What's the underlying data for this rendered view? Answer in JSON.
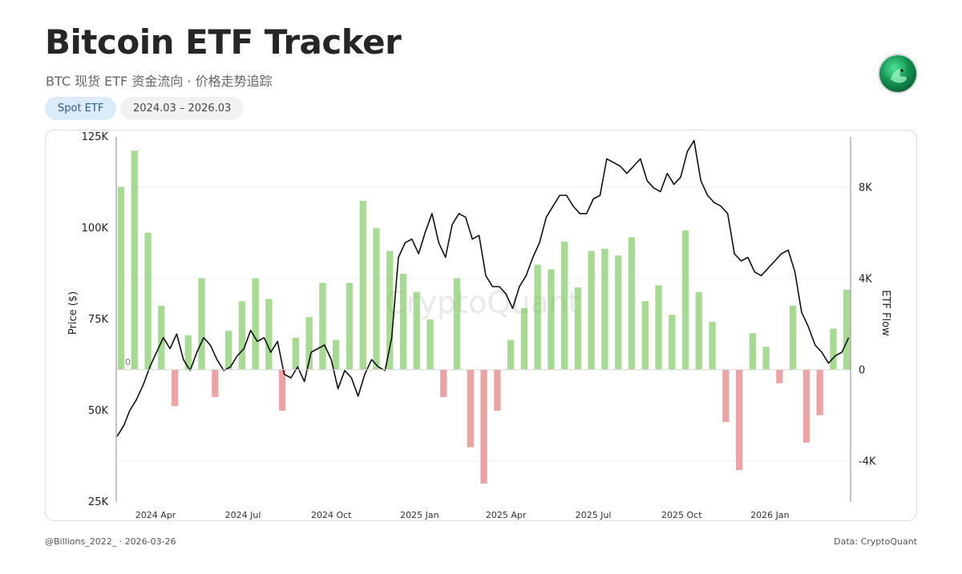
{
  "header": {
    "title": "Bitcoin ETF Tracker",
    "subtitle": "BTC 现货 ETF 资金流向 · 价格走势追踪"
  },
  "badges": {
    "spot_etf": "Spot ETF",
    "range": "2024.03 – 2026.03"
  },
  "watermark": "CryptoQuant",
  "footer": {
    "left": "@Billions_2022_ · 2026-03-26",
    "right": "Data: CryptoQuant"
  },
  "colors": {
    "inflow": "#6cc24a",
    "outflow": "#e06666",
    "price_line": "#111111",
    "pill_blue": "#dcebfa"
  },
  "chart_data": {
    "type": "bar+line",
    "ylabel_left": "Price ($)",
    "ylabel_right": "ETF Flow",
    "left_ylim": [
      25000,
      125000
    ],
    "left_ticks": [
      25000,
      50000,
      75000,
      100000,
      125000
    ],
    "left_tick_labels": [
      "25K",
      "50K",
      "75K",
      "100K",
      "125K"
    ],
    "right_ylim": [
      -5800,
      10200
    ],
    "right_ticks": [
      -4000,
      0,
      4000,
      8000
    ],
    "right_tick_labels": [
      "-4K",
      "0",
      "4K",
      "8K"
    ],
    "x_range": [
      "2024-02-20",
      "2026-03-26"
    ],
    "x_ticks": [
      "2024-04-01",
      "2024-07-01",
      "2024-10-01",
      "2025-01-01",
      "2025-04-01",
      "2025-07-01",
      "2025-10-01",
      "2026-01-01"
    ],
    "x_tick_labels": [
      "2024 Apr",
      "2024 Jul",
      "2024 Oct",
      "2025 Jan",
      "2025 Apr",
      "2025 Jul",
      "2025 Oct",
      "2026 Jan"
    ],
    "zero_label": "0",
    "price_series": {
      "name": "BTC Price",
      "dates": [
        "2024-02-21",
        "2024-02-28",
        "2024-03-05",
        "2024-03-12",
        "2024-03-19",
        "2024-03-26",
        "2024-04-02",
        "2024-04-09",
        "2024-04-16",
        "2024-04-23",
        "2024-04-30",
        "2024-05-07",
        "2024-05-14",
        "2024-05-21",
        "2024-05-28",
        "2024-06-04",
        "2024-06-11",
        "2024-06-18",
        "2024-06-25",
        "2024-07-02",
        "2024-07-09",
        "2024-07-16",
        "2024-07-23",
        "2024-07-30",
        "2024-08-06",
        "2024-08-13",
        "2024-08-20",
        "2024-08-27",
        "2024-09-03",
        "2024-09-10",
        "2024-09-17",
        "2024-09-24",
        "2024-10-01",
        "2024-10-08",
        "2024-10-15",
        "2024-10-22",
        "2024-10-29",
        "2024-11-05",
        "2024-11-12",
        "2024-11-19",
        "2024-11-26",
        "2024-12-03",
        "2024-12-10",
        "2024-12-17",
        "2024-12-24",
        "2024-12-31",
        "2025-01-07",
        "2025-01-14",
        "2025-01-21",
        "2025-01-28",
        "2025-02-04",
        "2025-02-11",
        "2025-02-18",
        "2025-02-25",
        "2025-03-04",
        "2025-03-11",
        "2025-03-18",
        "2025-03-25",
        "2025-04-01",
        "2025-04-08",
        "2025-04-15",
        "2025-04-22",
        "2025-04-29",
        "2025-05-06",
        "2025-05-13",
        "2025-05-20",
        "2025-05-27",
        "2025-06-03",
        "2025-06-10",
        "2025-06-17",
        "2025-06-24",
        "2025-07-01",
        "2025-07-08",
        "2025-07-15",
        "2025-07-22",
        "2025-07-29",
        "2025-08-05",
        "2025-08-12",
        "2025-08-19",
        "2025-08-26",
        "2025-09-02",
        "2025-09-09",
        "2025-09-16",
        "2025-09-23",
        "2025-09-30",
        "2025-10-07",
        "2025-10-14",
        "2025-10-21",
        "2025-10-28",
        "2025-11-04",
        "2025-11-11",
        "2025-11-18",
        "2025-11-25",
        "2025-12-02",
        "2025-12-09",
        "2025-12-16",
        "2025-12-23",
        "2025-12-30",
        "2026-01-06",
        "2026-01-13",
        "2026-01-20",
        "2026-01-27",
        "2026-02-03",
        "2026-02-10",
        "2026-02-17",
        "2026-02-24",
        "2026-03-03",
        "2026-03-10",
        "2026-03-17",
        "2026-03-24"
      ],
      "values": [
        43000,
        46000,
        50000,
        53000,
        57000,
        62000,
        66000,
        70000,
        67000,
        71000,
        64000,
        61000,
        66000,
        70000,
        68000,
        64000,
        61000,
        62000,
        65000,
        67000,
        72000,
        69000,
        70000,
        66000,
        69000,
        60000,
        59000,
        62000,
        58000,
        66000,
        67000,
        68000,
        64000,
        56000,
        61000,
        59000,
        54000,
        60000,
        64000,
        62000,
        61000,
        70000,
        92000,
        96000,
        97000,
        93000,
        99000,
        104000,
        96000,
        92000,
        101000,
        104000,
        103000,
        97000,
        98000,
        87000,
        84000,
        84000,
        82000,
        78000,
        84000,
        87000,
        92000,
        96000,
        103000,
        106000,
        109000,
        109000,
        106000,
        104000,
        104000,
        108000,
        109000,
        119000,
        118000,
        117000,
        115000,
        117000,
        119000,
        113000,
        111000,
        110000,
        115000,
        112000,
        114000,
        121000,
        124000,
        113000,
        109000,
        107000,
        106000,
        104000,
        93000,
        91000,
        92000,
        88000,
        87000,
        89000,
        91000,
        93000,
        94000,
        88000,
        77000,
        73000,
        68000,
        66000,
        63000,
        65000,
        66000,
        70000
      ]
    },
    "flow_series": {
      "name": "ETF Flow",
      "dates": [
        "2024-02-25",
        "2024-03-10",
        "2024-03-24",
        "2024-04-07",
        "2024-04-21",
        "2024-05-05",
        "2024-05-19",
        "2024-06-02",
        "2024-06-16",
        "2024-06-30",
        "2024-07-14",
        "2024-07-28",
        "2024-08-11",
        "2024-08-25",
        "2024-09-08",
        "2024-09-22",
        "2024-10-06",
        "2024-10-20",
        "2024-11-03",
        "2024-11-17",
        "2024-12-01",
        "2024-12-15",
        "2024-12-29",
        "2025-01-12",
        "2025-01-26",
        "2025-02-09",
        "2025-02-23",
        "2025-03-09",
        "2025-03-23",
        "2025-04-06",
        "2025-04-20",
        "2025-05-04",
        "2025-05-18",
        "2025-06-01",
        "2025-06-15",
        "2025-06-29",
        "2025-07-13",
        "2025-07-27",
        "2025-08-10",
        "2025-08-24",
        "2025-09-07",
        "2025-09-21",
        "2025-10-05",
        "2025-10-19",
        "2025-11-02",
        "2025-11-16",
        "2025-11-30",
        "2025-12-14",
        "2025-12-28",
        "2026-01-11",
        "2026-01-25",
        "2026-02-08",
        "2026-02-22",
        "2026-03-08",
        "2026-03-22"
      ],
      "values": [
        8000,
        9600,
        6000,
        2800,
        -1600,
        1500,
        4000,
        -1200,
        1700,
        3000,
        4000,
        3100,
        -1800,
        1400,
        2300,
        3800,
        1300,
        3800,
        7400,
        6200,
        5200,
        4200,
        3400,
        2200,
        -1200,
        4000,
        -3400,
        -5000,
        -1800,
        1300,
        2700,
        4600,
        4400,
        5600,
        3600,
        5200,
        5300,
        5000,
        5800,
        3000,
        3700,
        2400,
        6100,
        3400,
        2100,
        -2300,
        -4400,
        1600,
        1000,
        -600,
        2800,
        -3200,
        -2000,
        1800,
        3500
      ]
    }
  }
}
